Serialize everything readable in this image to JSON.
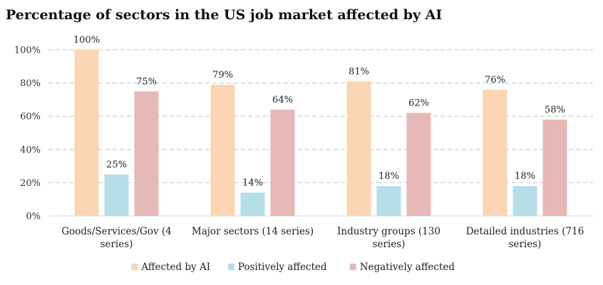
{
  "chart_data": {
    "type": "bar",
    "title": "Percentage of sectors in the US job market affected by AI",
    "categories": [
      [
        "Goods/Services/Gov (4",
        "series)"
      ],
      [
        "Major sectors (14 series)"
      ],
      [
        "Industry groups (130",
        "series)"
      ],
      [
        "Detailed industries (716",
        "series)"
      ]
    ],
    "series": [
      {
        "name": "Affected by AI",
        "color": "#fcd5b4",
        "values": [
          100,
          79,
          81,
          76
        ]
      },
      {
        "name": "Positively affected",
        "color": "#b7dee8",
        "values": [
          25,
          14,
          18,
          18
        ]
      },
      {
        "name": "Negatively affected",
        "color": "#e6b8b7",
        "values": [
          75,
          64,
          62,
          58
        ]
      }
    ],
    "ylim": [
      0,
      100
    ],
    "yticks": [
      0,
      20,
      40,
      60,
      80,
      100
    ],
    "value_suffix": "%",
    "grid": true,
    "legend": "bottom"
  }
}
